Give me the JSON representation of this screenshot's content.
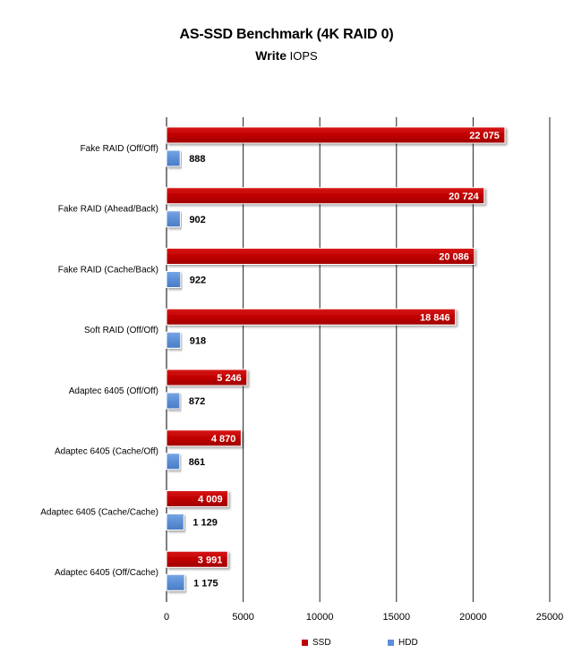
{
  "chart_data": {
    "type": "bar",
    "orientation": "horizontal",
    "title": "AS-SSD Benchmark (4K RAID 0)",
    "subtitle_bold": "Write",
    "subtitle_rest": " IOPS",
    "categories": [
      "Fake RAID (Off/Off)",
      "Fake RAID (Ahead/Back)",
      "Fake RAID (Cache/Back)",
      "Soft RAID (Off/Off)",
      "Adaptec 6405 (Off/Off)",
      "Adaptec 6405 (Cache/Off)",
      "Adaptec 6405 (Cache/Cache)",
      "Adaptec 6405 (Off/Cache)"
    ],
    "series": [
      {
        "name": "SSD",
        "color": "#c00000",
        "values": [
          22075,
          20724,
          20086,
          18846,
          5246,
          4870,
          4009,
          3991
        ],
        "labels": [
          "22 075",
          "20 724",
          "20 086",
          "18 846",
          "5 246",
          "4 870",
          "4 009",
          "3 991"
        ]
      },
      {
        "name": "HDD",
        "color": "#5b8fd6",
        "values": [
          888,
          902,
          922,
          918,
          872,
          861,
          1129,
          1175
        ],
        "labels": [
          "888",
          "902",
          "922",
          "918",
          "872",
          "861",
          "1 129",
          "1 175"
        ]
      }
    ],
    "xlim": [
      0,
      25000
    ],
    "xticks": [
      0,
      5000,
      10000,
      15000,
      20000,
      25000
    ],
    "xtick_labels": [
      "0",
      "5000",
      "10000",
      "15000",
      "20000",
      "25000"
    ],
    "grid": "vertical",
    "legend": "bottom"
  }
}
